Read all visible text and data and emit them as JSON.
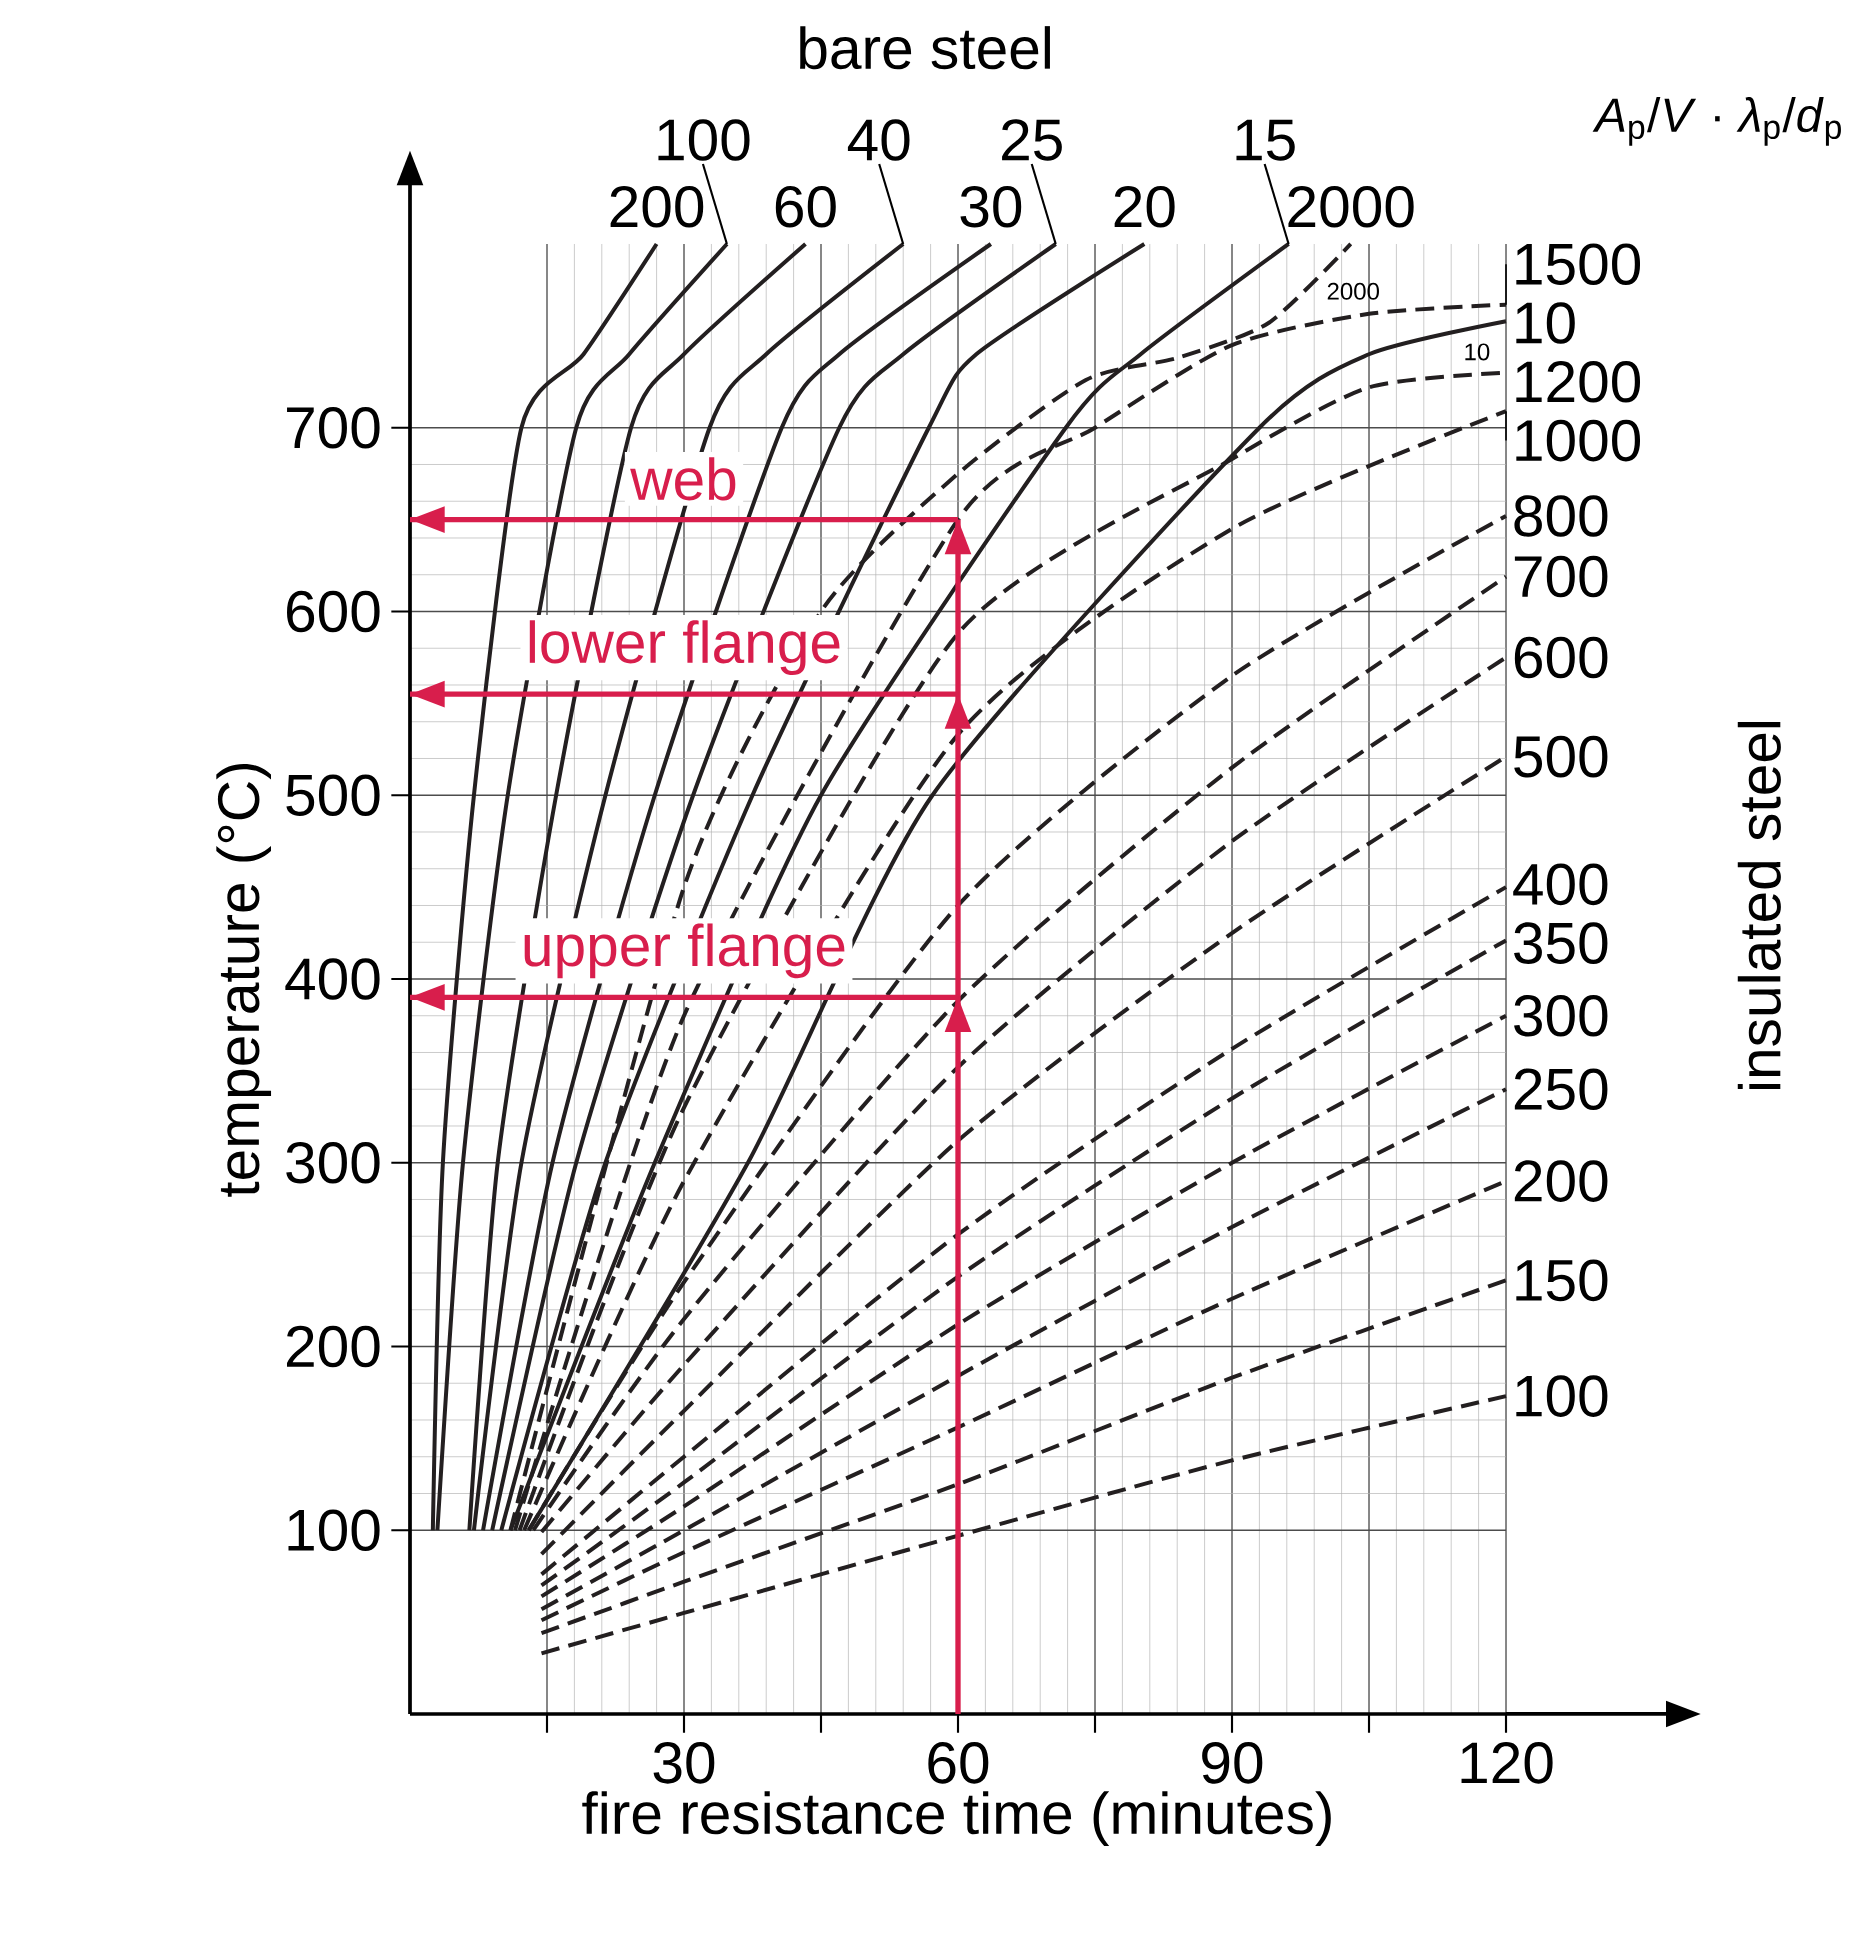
{
  "chart_data": {
    "type": "line",
    "xlabel": "fire resistance time (minutes)",
    "ylabel": "temperature (°C)",
    "legend_title": "*A*$_{p}$/*V* · *λ*$_{p}$/*d*$_{p}$",
    "xlim": [
      0,
      120
    ],
    "ylim": [
      0,
      800
    ],
    "xticks": [
      {
        "value": 15,
        "label": null
      },
      30,
      {
        "value": 45,
        "label": null
      },
      60,
      {
        "value": 75,
        "label": null
      },
      90,
      {
        "value": 105,
        "label": null
      },
      120
    ],
    "yticks": [
      100,
      200,
      300,
      400,
      500,
      600,
      700
    ],
    "grid": true,
    "series": [
      {
        "name": "200",
        "color": "#231f20",
        "line_style": "solid",
        "x": [
          2.5,
          3.6,
          7,
          12.2,
          19,
          27
        ],
        "values": [
          100,
          300,
          500,
          700,
          740,
          800
        ]
      },
      {
        "name": "100",
        "color": "#231f20",
        "line_style": "solid",
        "x": [
          3,
          5.8,
          10.7,
          18.2,
          24,
          34.7
        ],
        "values": [
          100,
          300,
          500,
          700,
          740,
          800
        ]
      },
      {
        "name": "60",
        "color": "#231f20",
        "line_style": "solid",
        "x": [
          6.5,
          9.6,
          16,
          24.2,
          30,
          43.3
        ],
        "values": [
          100,
          300,
          500,
          700,
          740,
          800
        ]
      },
      {
        "name": "40",
        "color": "#231f20",
        "line_style": "solid",
        "x": [
          7,
          12.2,
          21.4,
          32.8,
          39,
          54
        ],
        "values": [
          100,
          300,
          500,
          700,
          740,
          800
        ]
      },
      {
        "name": "30",
        "color": "#231f20",
        "line_style": "solid",
        "x": [
          8,
          15.6,
          26.8,
          40.7,
          47,
          63.6
        ],
        "values": [
          100,
          300,
          500,
          700,
          740,
          800
        ]
      },
      {
        "name": "25",
        "color": "#231f20",
        "line_style": "solid",
        "x": [
          9,
          18.2,
          31,
          47,
          54,
          70.7
        ],
        "values": [
          100,
          300,
          500,
          700,
          740,
          800
        ]
      },
      {
        "name": "20",
        "color": "#231f20",
        "line_style": "solid",
        "x": [
          10,
          21.4,
          37.5,
          56.8,
          62,
          80.4
        ],
        "values": [
          100,
          300,
          500,
          700,
          740,
          800
        ]
      },
      {
        "name": "15",
        "color": "#231f20",
        "line_style": "solid",
        "x": [
          11,
          26.8,
          45,
          71.8,
          80,
          96.2
        ],
        "values": [
          100,
          300,
          500,
          700,
          740,
          800
        ]
      },
      {
        "name": "10",
        "color": "#231f20",
        "line_style": "solid",
        "x": [
          13,
          37,
          57.2,
          93,
          105,
          120
        ],
        "values": [
          100,
          300,
          500,
          700,
          740,
          758
        ]
      },
      {
        "name": "2000",
        "color": "#231f20",
        "line_style": "dashed",
        "x": [
          11,
          30,
          45,
          60,
          74,
          84,
          94,
          103
        ],
        "values": [
          100,
          450,
          600,
          675,
          726,
          738,
          757,
          800
        ]
      },
      {
        "name": "1500",
        "color": "#231f20",
        "line_style": "dashed",
        "x": [
          11.5,
          30,
          60,
          75,
          90,
          105,
          120
        ],
        "values": [
          100,
          380,
          650,
          700,
          745,
          762,
          767
        ]
      },
      {
        "name": "1200",
        "color": "#231f20",
        "line_style": "dashed",
        "x": [
          12,
          30,
          60,
          90,
          105,
          120
        ],
        "values": [
          100,
          330,
          588,
          683,
          722,
          730
        ]
      },
      {
        "name": "1000",
        "color": "#231f20",
        "line_style": "dashed",
        "x": [
          12.5,
          30,
          60,
          90,
          120
        ],
        "values": [
          100,
          290,
          533,
          645,
          709
        ]
      },
      {
        "name": "800",
        "color": "#231f20",
        "line_style": "dashed",
        "x": [
          13,
          30,
          60,
          90,
          120
        ],
        "values": [
          100,
          235,
          440,
          565,
          652
        ]
      },
      {
        "name": "700",
        "color": "#231f20",
        "line_style": "dashed",
        "x": [
          13.5,
          30,
          60,
          90,
          120
        ],
        "values": [
          100,
          215,
          388,
          515,
          619
        ]
      },
      {
        "name": "600",
        "color": "#231f20",
        "line_style": "dashed",
        "x": [
          14.4,
          30,
          60,
          90,
          120
        ],
        "values": [
          99,
          190,
          352,
          475,
          575
        ]
      },
      {
        "name": "500",
        "color": "#231f20",
        "line_style": "dashed",
        "x": [
          14.4,
          30,
          60,
          90,
          120
        ],
        "values": [
          87,
          165,
          312,
          425,
          521
        ]
      },
      {
        "name": "400",
        "color": "#231f20",
        "line_style": "dashed",
        "x": [
          14.4,
          30,
          60,
          90,
          120
        ],
        "values": [
          76,
          140,
          261,
          362,
          450
        ]
      },
      {
        "name": "350",
        "color": "#231f20",
        "line_style": "dashed",
        "x": [
          14.4,
          30,
          60,
          90,
          120
        ],
        "values": [
          70,
          126,
          238,
          335,
          421
        ]
      },
      {
        "name": "300",
        "color": "#231f20",
        "line_style": "dashed",
        "x": [
          14.4,
          30,
          60,
          90,
          120
        ],
        "values": [
          64,
          113,
          212,
          300,
          380
        ]
      },
      {
        "name": "250",
        "color": "#231f20",
        "line_style": "dashed",
        "x": [
          14.4,
          30,
          60,
          90,
          120
        ],
        "values": [
          57,
          100,
          184,
          265,
          340
        ]
      },
      {
        "name": "200",
        "color": "#231f20",
        "line_style": "dashed",
        "x": [
          14.4,
          30,
          60,
          90,
          120
        ],
        "values": [
          51,
          88,
          156,
          226,
          290
        ]
      },
      {
        "name": "150",
        "color": "#231f20",
        "line_style": "dashed",
        "x": [
          14.4,
          30,
          60,
          90,
          120
        ],
        "values": [
          44,
          72,
          125,
          183,
          236
        ]
      },
      {
        "name": "100",
        "color": "#231f20",
        "line_style": "dashed",
        "x": [
          14.4,
          30,
          60,
          90,
          120
        ],
        "values": [
          33,
          55,
          97,
          138,
          173
        ]
      }
    ],
    "ref_lines": [
      {
        "axis": "x",
        "value": 60,
        "color": "#d81e4c"
      },
      {
        "axis": "y",
        "value": 650,
        "label": "web",
        "color": "#d81e4c"
      },
      {
        "axis": "y",
        "value": 555,
        "label": "lower flange",
        "color": "#d81e4c"
      },
      {
        "axis": "y",
        "value": 390,
        "label": "upper flange",
        "color": "#d81e4c"
      }
    ],
    "annotations": [
      "bare steel",
      "insulated steel",
      {
        "text": "2000",
        "x": 100,
        "y": 785
      },
      {
        "text": "10",
        "x": 115,
        "y": 752
      }
    ]
  }
}
